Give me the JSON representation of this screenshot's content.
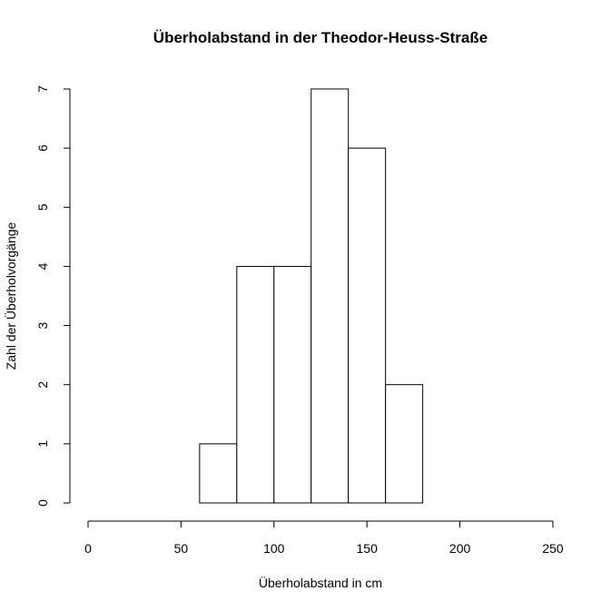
{
  "chart_data": {
    "type": "bar",
    "title": "Überholabstand in der Theodor-Heuss-Straße",
    "xlabel": "Überholabstand in cm",
    "ylabel": "Zahl der Überholvorgänge",
    "bins": [
      {
        "from": 60,
        "to": 80,
        "count": 1
      },
      {
        "from": 80,
        "to": 100,
        "count": 4
      },
      {
        "from": 100,
        "to": 120,
        "count": 4
      },
      {
        "from": 120,
        "to": 140,
        "count": 7
      },
      {
        "from": 140,
        "to": 160,
        "count": 6
      },
      {
        "from": 160,
        "to": 180,
        "count": 2
      }
    ],
    "xlim": [
      0,
      250
    ],
    "ylim": [
      0,
      7
    ],
    "x_ticks": [
      0,
      50,
      100,
      150,
      200,
      250
    ],
    "y_ticks": [
      0,
      1,
      2,
      3,
      4,
      5,
      6,
      7
    ],
    "grid": false,
    "bar_fill": "#ffffff",
    "bar_stroke": "#000000"
  }
}
